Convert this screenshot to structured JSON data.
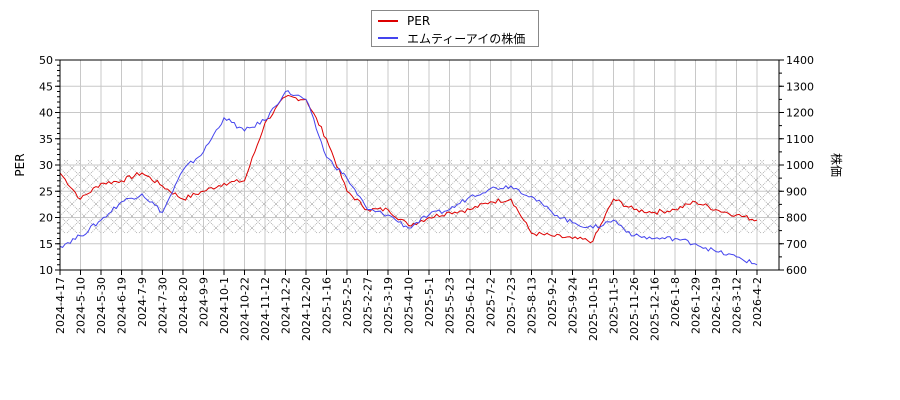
{
  "chart_data": {
    "type": "line",
    "title": "",
    "legend": {
      "position": "top-center",
      "entries": [
        {
          "name": "PER",
          "color": "#dd0000"
        },
        {
          "name": "エムティーアイの株価",
          "color": "#4444ee"
        }
      ]
    },
    "xlabel": "",
    "ylabel": "PER",
    "y2label": "株価",
    "ylim": [
      10,
      50
    ],
    "y2lim": [
      600,
      1400
    ],
    "yticks": [
      10,
      15,
      20,
      25,
      30,
      35,
      40,
      45,
      50
    ],
    "y2ticks": [
      600,
      700,
      800,
      900,
      1000,
      1100,
      1200,
      1300,
      1400
    ],
    "grid": true,
    "shaded_band": {
      "axis": "PER",
      "from": 17,
      "to": 31,
      "pattern": "cross-hatch"
    },
    "categories": [
      "2024-4-17",
      "2024-5-10",
      "2024-5-30",
      "2024-6-19",
      "2024-7-9",
      "2024-7-30",
      "2024-8-20",
      "2024-9-9",
      "2024-10-1",
      "2024-10-22",
      "2024-11-12",
      "2024-12-2",
      "2024-12-20",
      "2025-1-16",
      "2025-2-5",
      "2025-2-27",
      "2025-3-19",
      "2025-4-10",
      "2025-5-1",
      "2025-5-23",
      "2025-6-12",
      "2025-7-2",
      "2025-7-23",
      "2025-8-13",
      "2025-9-2",
      "2025-9-24",
      "2025-10-15",
      "2025-11-5",
      "2025-11-26",
      "2025-12-16",
      "2026-1-8",
      "2026-1-29",
      "2026-2-19",
      "2026-3-12",
      "2026-4-2"
    ],
    "series": [
      {
        "name": "PER",
        "axis": "left",
        "color": "#dd0000",
        "values": [
          28.5,
          23.5,
          26.5,
          27.0,
          28.5,
          26.0,
          23.5,
          25.0,
          26.5,
          27.0,
          38.0,
          43.0,
          42.5,
          35.0,
          25.0,
          21.5,
          21.5,
          18.5,
          20.0,
          21.0,
          21.5,
          23.0,
          23.5,
          17.0,
          16.5,
          16.0,
          15.5,
          23.5,
          21.5,
          21.0,
          21.5,
          23.0,
          21.5,
          20.5,
          19.5
        ]
      },
      {
        "name": "エムティーアイの株価",
        "axis": "right",
        "color": "#4444ee",
        "values": [
          690,
          730,
          790,
          860,
          890,
          820,
          980,
          1050,
          1180,
          1130,
          1170,
          1280,
          1250,
          1030,
          950,
          830,
          810,
          760,
          810,
          830,
          880,
          910,
          920,
          880,
          820,
          780,
          760,
          790,
          730,
          720,
          720,
          700,
          670,
          650,
          620
        ]
      }
    ]
  }
}
